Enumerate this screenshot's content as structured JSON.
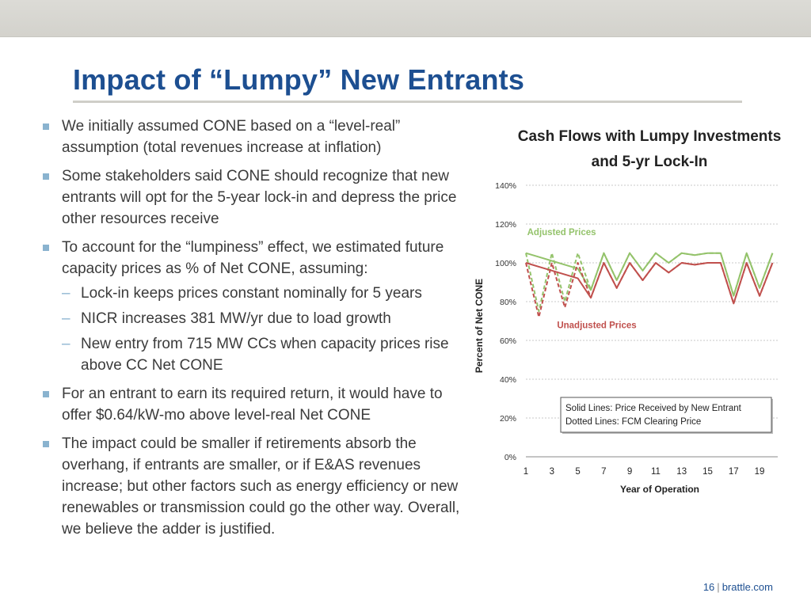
{
  "slide": {
    "title": "Impact of “Lumpy” New Entrants",
    "page_number": "16",
    "footer_sep": "|",
    "footer_site": "brattle.com"
  },
  "bullets": [
    {
      "text": "We initially assumed CONE based on a “level-real” assumption (total revenues increase at inflation)"
    },
    {
      "text": "Some stakeholders said CONE should recognize that new entrants will opt for the 5-year lock-in and depress the price other resources receive"
    },
    {
      "text": "To account for the “lumpiness” effect, we estimated future capacity prices as % of Net CONE, assuming:",
      "subs": [
        "Lock-in keeps prices constant nominally for 5 years",
        "NICR increases 381 MW/yr due to load growth",
        "New entry from 715 MW CCs when capacity prices rise above CC Net CONE"
      ]
    },
    {
      "text": "For an entrant to earn its required return, it would have to offer $0.64/kW-mo above level-real Net CONE"
    },
    {
      "text": "The impact could be smaller if retirements absorb the overhang, if entrants are smaller, or if E&AS revenues increase; but other factors such as energy efficiency or new renewables or transmission could go the other way.  Overall, we believe the adder is justified."
    }
  ],
  "chart_data": {
    "type": "line",
    "title": "Cash Flows with Lumpy Investments and 5-yr Lock-In",
    "xlabel": "Year of Operation",
    "ylabel": "Percent of Net CONE",
    "x": [
      1,
      2,
      3,
      4,
      5,
      6,
      7,
      8,
      9,
      10,
      11,
      12,
      13,
      14,
      15,
      16,
      17,
      18,
      19,
      20
    ],
    "x_tick_labels": [
      "1",
      "3",
      "5",
      "7",
      "9",
      "11",
      "13",
      "15",
      "17",
      "19"
    ],
    "y_tick_labels": [
      "0%",
      "20%",
      "40%",
      "60%",
      "80%",
      "100%",
      "120%",
      "140%"
    ],
    "ylim": [
      0,
      1.4
    ],
    "grid": true,
    "series": [
      {
        "name": "Adjusted Prices",
        "style": "solid",
        "color": "#94c36b",
        "values": [
          1.05,
          1.03,
          1.01,
          0.99,
          0.97,
          0.86,
          1.05,
          0.91,
          1.05,
          0.96,
          1.05,
          1.0,
          1.05,
          1.04,
          1.05,
          1.05,
          0.83,
          1.05,
          0.87,
          1.05
        ]
      },
      {
        "name": "Adjusted Prices",
        "style": "dotted",
        "color": "#94c36b",
        "values": [
          1.05,
          0.75,
          1.05,
          0.8,
          1.05,
          0.86,
          1.05,
          0.91,
          1.05,
          0.96,
          1.05,
          1.0,
          1.05,
          1.04,
          1.05,
          1.05,
          0.83,
          1.05,
          0.87,
          1.05
        ]
      },
      {
        "name": "Unadjusted Prices",
        "style": "solid",
        "color": "#c0504d",
        "values": [
          1.0,
          0.98,
          0.96,
          0.94,
          0.92,
          0.82,
          1.0,
          0.87,
          1.0,
          0.91,
          1.0,
          0.95,
          1.0,
          0.99,
          1.0,
          1.0,
          0.79,
          1.0,
          0.83,
          1.0
        ]
      },
      {
        "name": "Unadjusted Prices",
        "style": "dotted",
        "color": "#c0504d",
        "values": [
          1.0,
          0.72,
          1.0,
          0.77,
          1.0,
          0.82,
          1.0,
          0.87,
          1.0,
          0.91,
          1.0,
          0.95,
          1.0,
          0.99,
          1.0,
          1.0,
          0.79,
          1.0,
          0.83,
          1.0
        ]
      }
    ],
    "annotations": [
      {
        "text": "Adjusted Prices",
        "color": "#94c36b"
      },
      {
        "text": "Unadjusted Prices",
        "color": "#c0504d"
      }
    ],
    "legend_box": {
      "lines": [
        "Solid Lines: Price Received by New Entrant",
        "Dotted Lines: FCM Clearing Price"
      ],
      "placement": "bottom-right"
    }
  }
}
